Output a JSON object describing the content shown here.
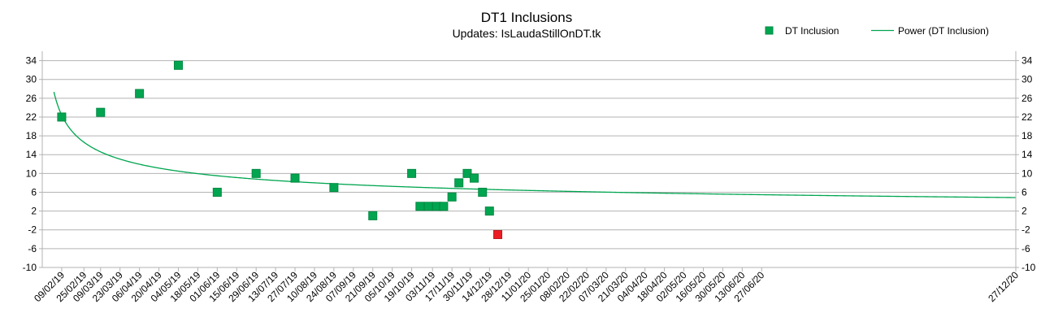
{
  "chart_data": {
    "type": "scatter",
    "title": "DT1 Inclusions",
    "subtitle": "Updates: IsLaudaStillOnDT.tk",
    "xlabel": "",
    "ylabel": "",
    "ylim": [
      -10,
      36
    ],
    "yticks": [
      34,
      30,
      26,
      22,
      18,
      14,
      10,
      6,
      2,
      -2,
      -6,
      -10
    ],
    "grid": true,
    "legend_position": "top-right",
    "x_tick_labels": [
      "09/02/19",
      "25/02/19",
      "09/03/19",
      "23/03/19",
      "06/04/19",
      "20/04/19",
      "04/05/19",
      "18/05/19",
      "01/06/19",
      "15/06/19",
      "29/06/19",
      "13/07/19",
      "27/07/19",
      "10/08/19",
      "24/08/19",
      "07/09/19",
      "21/09/19",
      "05/10/19",
      "19/10/19",
      "03/11/19",
      "17/11/19",
      "30/11/19",
      "14/12/19",
      "28/12/19",
      "11/01/20",
      "25/01/20",
      "08/02/20",
      "22/02/20",
      "07/03/20",
      "21/03/20",
      "04/04/20",
      "18/04/20",
      "02/05/20",
      "16/05/20",
      "30/05/20",
      "13/06/20",
      "27/06/20",
      "27/12/20"
    ],
    "series": [
      {
        "name": "DT Inclusion",
        "kind": "scatter",
        "color": "#00a550",
        "points": [
          {
            "x": "09/02/19",
            "y": 22
          },
          {
            "x": "09/03/19",
            "y": 23
          },
          {
            "x": "06/04/19",
            "y": 27
          },
          {
            "x": "04/05/19",
            "y": 33
          },
          {
            "x": "01/06/19",
            "y": 6
          },
          {
            "x": "29/06/19",
            "y": 10
          },
          {
            "x": "27/07/19",
            "y": 9
          },
          {
            "x": "24/08/19",
            "y": 7
          },
          {
            "x": "21/09/19",
            "y": 1
          },
          {
            "x": "19/10/19",
            "y": 10
          },
          {
            "x": "25/10/19",
            "y": 3
          },
          {
            "x": "31/10/19",
            "y": 3
          },
          {
            "x": "06/11/19",
            "y": 3
          },
          {
            "x": "11/11/19",
            "y": 3
          },
          {
            "x": "17/11/19",
            "y": 5
          },
          {
            "x": "22/11/19",
            "y": 8
          },
          {
            "x": "28/11/19",
            "y": 10
          },
          {
            "x": "03/12/19",
            "y": 9
          },
          {
            "x": "09/12/19",
            "y": 6
          },
          {
            "x": "14/12/19",
            "y": 2
          }
        ]
      },
      {
        "name": "",
        "kind": "scatter",
        "color": "#ed1c24",
        "points": [
          {
            "x": "20/12/19",
            "y": -3
          }
        ]
      },
      {
        "name": "Power (DT Inclusion)",
        "kind": "line",
        "color": "#00a550",
        "trend": {
          "type": "power",
          "a": 22.4,
          "b": -0.39
        }
      }
    ]
  }
}
